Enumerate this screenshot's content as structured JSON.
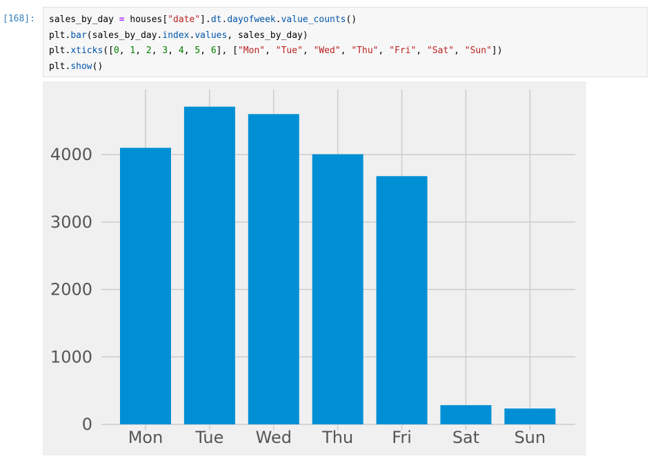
{
  "cell": {
    "prompt": "[168]:",
    "code_lines": [
      [
        {
          "t": "sales_by_day ",
          "c": "var"
        },
        {
          "t": "=",
          "c": "op"
        },
        {
          "t": " houses[",
          "c": "var"
        },
        {
          "t": "\"date\"",
          "c": "str"
        },
        {
          "t": "].",
          "c": "var"
        },
        {
          "t": "dt",
          "c": "attr"
        },
        {
          "t": ".",
          "c": "var"
        },
        {
          "t": "dayofweek",
          "c": "attr"
        },
        {
          "t": ".",
          "c": "var"
        },
        {
          "t": "value_counts",
          "c": "attr"
        },
        {
          "t": "()",
          "c": "var"
        }
      ],
      [
        {
          "t": "plt",
          "c": "var"
        },
        {
          "t": ".",
          "c": "var"
        },
        {
          "t": "bar",
          "c": "attr"
        },
        {
          "t": "(sales_by_day",
          "c": "var"
        },
        {
          "t": ".",
          "c": "var"
        },
        {
          "t": "index",
          "c": "attr"
        },
        {
          "t": ".",
          "c": "var"
        },
        {
          "t": "values",
          "c": "attr"
        },
        {
          "t": ", sales_by_day)",
          "c": "var"
        }
      ],
      [
        {
          "t": "plt",
          "c": "var"
        },
        {
          "t": ".",
          "c": "var"
        },
        {
          "t": "xticks",
          "c": "attr"
        },
        {
          "t": "([",
          "c": "var"
        },
        {
          "t": "0",
          "c": "num"
        },
        {
          "t": ", ",
          "c": "var"
        },
        {
          "t": "1",
          "c": "num"
        },
        {
          "t": ", ",
          "c": "var"
        },
        {
          "t": "2",
          "c": "num"
        },
        {
          "t": ", ",
          "c": "var"
        },
        {
          "t": "3",
          "c": "num"
        },
        {
          "t": ", ",
          "c": "var"
        },
        {
          "t": "4",
          "c": "num"
        },
        {
          "t": ", ",
          "c": "var"
        },
        {
          "t": "5",
          "c": "num"
        },
        {
          "t": ", ",
          "c": "var"
        },
        {
          "t": "6",
          "c": "num"
        },
        {
          "t": "], [",
          "c": "var"
        },
        {
          "t": "\"Mon\"",
          "c": "str"
        },
        {
          "t": ", ",
          "c": "var"
        },
        {
          "t": "\"Tue\"",
          "c": "str"
        },
        {
          "t": ", ",
          "c": "var"
        },
        {
          "t": "\"Wed\"",
          "c": "str"
        },
        {
          "t": ", ",
          "c": "var"
        },
        {
          "t": "\"Thu\"",
          "c": "str"
        },
        {
          "t": ", ",
          "c": "var"
        },
        {
          "t": "\"Fri\"",
          "c": "str"
        },
        {
          "t": ", ",
          "c": "var"
        },
        {
          "t": "\"Sat\"",
          "c": "str"
        },
        {
          "t": ", ",
          "c": "var"
        },
        {
          "t": "\"Sun\"",
          "c": "str"
        },
        {
          "t": "])",
          "c": "var"
        }
      ],
      [
        {
          "t": "plt",
          "c": "var"
        },
        {
          "t": ".",
          "c": "var"
        },
        {
          "t": "show",
          "c": "attr"
        },
        {
          "t": "()",
          "c": "var"
        }
      ]
    ]
  },
  "chart_data": {
    "type": "bar",
    "categories": [
      "Mon",
      "Tue",
      "Wed",
      "Thu",
      "Fri",
      "Sat",
      "Sun"
    ],
    "values": [
      4100,
      4710,
      4600,
      4005,
      3680,
      285,
      235
    ],
    "title": "",
    "xlabel": "",
    "ylabel": "",
    "ylim": [
      0,
      5000
    ],
    "yticks": [
      0,
      1000,
      2000,
      3000,
      4000
    ],
    "ytick_labels": [
      "0",
      "1000",
      "2000",
      "3000",
      "4000"
    ],
    "grid": true,
    "bar_color": "#008fd5",
    "background_color": "#f0f0f0",
    "grid_color": "#cbcbcb",
    "tick_label_color": "#555555"
  }
}
